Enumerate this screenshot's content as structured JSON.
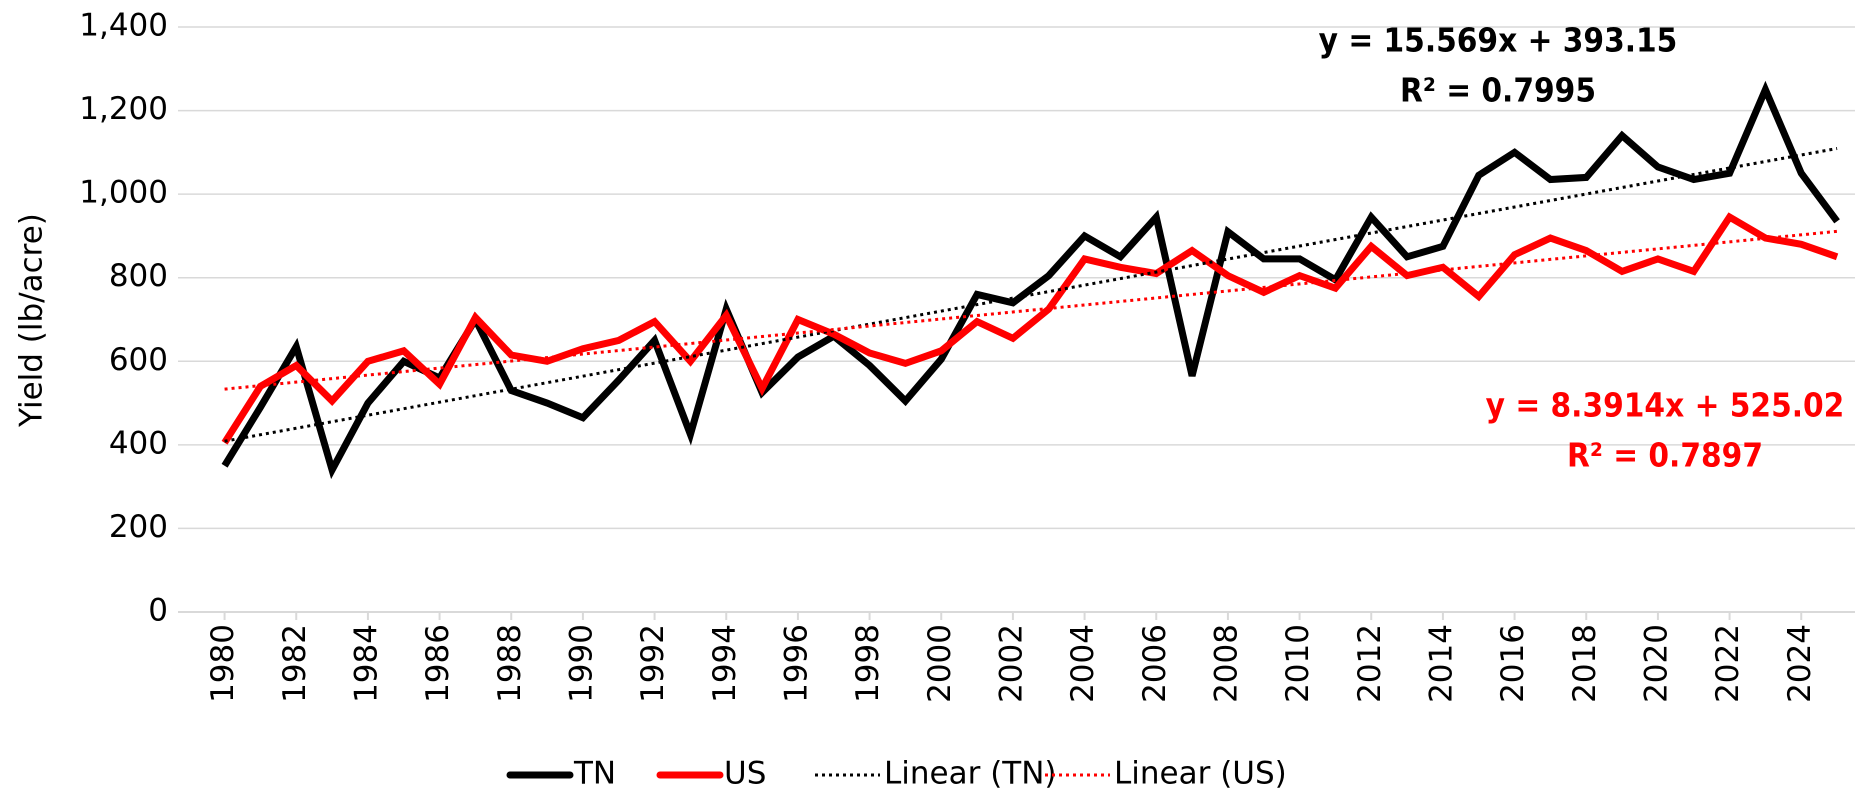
{
  "chart_data": {
    "type": "line",
    "ylabel": "Yield (lb/acre)",
    "x": [
      1980,
      1981,
      1982,
      1983,
      1984,
      1985,
      1986,
      1987,
      1988,
      1989,
      1990,
      1991,
      1992,
      1993,
      1994,
      1995,
      1996,
      1997,
      1998,
      1999,
      2000,
      2001,
      2002,
      2003,
      2004,
      2005,
      2006,
      2007,
      2008,
      2009,
      2010,
      2011,
      2012,
      2013,
      2014,
      2015,
      2016,
      2017,
      2018,
      2019,
      2020,
      2021,
      2022,
      2023,
      2024,
      2025
    ],
    "series": [
      {
        "name": "TN",
        "color": "#000000",
        "values": [
          350,
          490,
          635,
          340,
          500,
          600,
          560,
          700,
          530,
          500,
          465,
          555,
          650,
          425,
          725,
          525,
          610,
          660,
          590,
          505,
          605,
          760,
          740,
          805,
          900,
          850,
          945,
          565,
          910,
          845,
          845,
          795,
          945,
          850,
          875,
          1045,
          1100,
          1035,
          1040,
          1140,
          1065,
          1035,
          1050,
          1250,
          1050,
          935
        ]
      },
      {
        "name": "US",
        "color": "#ff0000",
        "values": [
          405,
          540,
          590,
          505,
          600,
          625,
          545,
          705,
          615,
          600,
          630,
          650,
          695,
          600,
          710,
          535,
          700,
          665,
          620,
          595,
          625,
          695,
          655,
          725,
          845,
          825,
          810,
          865,
          805,
          765,
          805,
          775,
          875,
          805,
          825,
          755,
          855,
          895,
          865,
          815,
          845,
          815,
          945,
          895,
          880,
          850
        ]
      },
      {
        "name": "Linear (TN)",
        "color": "#000000",
        "dash": "dotted",
        "x": [
          1980,
          2025
        ],
        "values": [
          408.7,
          1109.3
        ]
      },
      {
        "name": "Linear (US)",
        "color": "#ff0000",
        "dash": "dotted",
        "x": [
          1980,
          2025
        ],
        "values": [
          533.4,
          911.0
        ]
      }
    ],
    "annotations": [
      {
        "lines": [
          "y = 15.569x + 393.15",
          "R² = 0.7995"
        ],
        "color": "#000000"
      },
      {
        "lines": [
          "y = 8.3914x + 525.02",
          "R² = 0.7897"
        ],
        "color": "#ff0000"
      }
    ],
    "xlim": [
      1978.7,
      2025.5
    ],
    "xticks": [
      1980,
      1982,
      1984,
      1986,
      1988,
      1990,
      1992,
      1994,
      1996,
      1998,
      2000,
      2002,
      2004,
      2006,
      2008,
      2010,
      2012,
      2014,
      2016,
      2018,
      2020,
      2022,
      2024
    ],
    "ylim": [
      0,
      1400
    ],
    "yticks": [
      0,
      200,
      400,
      600,
      800,
      {
        "value": 1000,
        "label": "1,000"
      },
      {
        "value": 1200,
        "label": "1,200"
      },
      {
        "value": 1400,
        "label": "1,400"
      }
    ],
    "grid": true,
    "legend": "bottom"
  }
}
